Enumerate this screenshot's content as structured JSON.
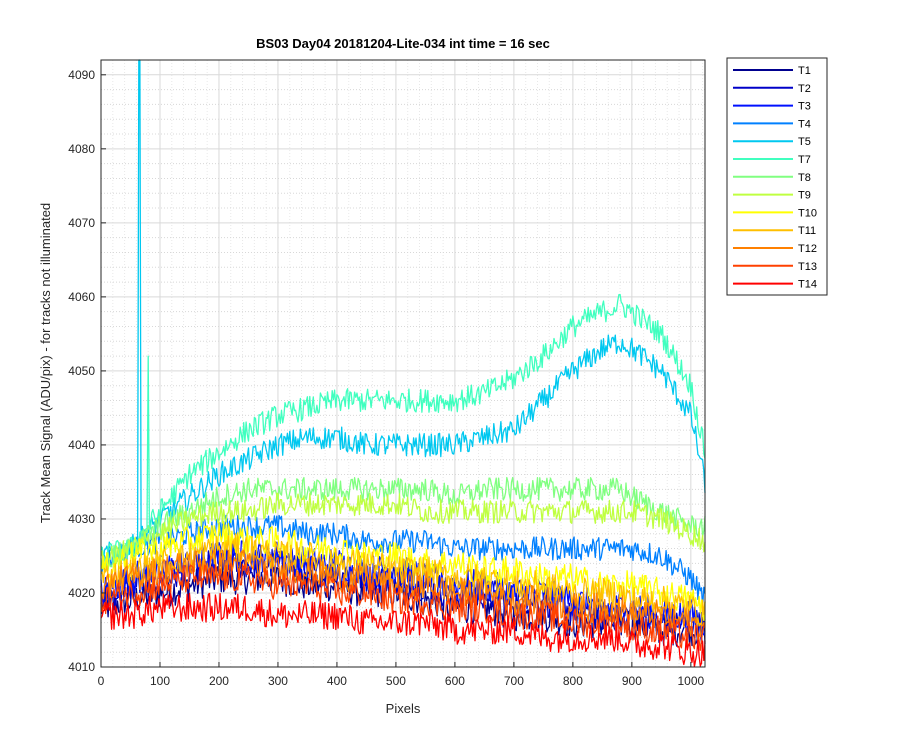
{
  "chart_data": {
    "type": "line",
    "title": "BS03 Day04 20181204-Lite-034 int time = 16 sec",
    "xlabel": "Pixels",
    "ylabel": "Track Mean Signal (ADU/pix) - for tracks not illuminated",
    "xlim": [
      0,
      1024
    ],
    "ylim": [
      4010,
      4092
    ],
    "xticks": [
      0,
      100,
      200,
      300,
      400,
      500,
      600,
      700,
      800,
      900,
      1000
    ],
    "yticks": [
      4010,
      4020,
      4030,
      4040,
      4050,
      4060,
      4070,
      4080,
      4090
    ],
    "grid": "major and minor",
    "legend_position": "outside-top-right",
    "x": [
      0,
      50,
      100,
      150,
      200,
      250,
      300,
      350,
      400,
      450,
      500,
      550,
      600,
      650,
      700,
      750,
      800,
      850,
      880,
      900,
      950,
      1000,
      1024
    ],
    "series": [
      {
        "name": "T1",
        "color": "#00008f",
        "noise": 2.2,
        "values": [
          4018,
          4019,
          4020,
          4021,
          4022,
          4022,
          4022,
          4021,
          4021,
          4020,
          4020,
          4019,
          4018,
          4018,
          4017,
          4017,
          4016,
          4016,
          4016,
          4016,
          4015,
          4015,
          4015
        ]
      },
      {
        "name": "T2",
        "color": "#0000c8",
        "noise": 2.2,
        "values": [
          4019,
          4021,
          4022,
          4023,
          4024,
          4024,
          4024,
          4023,
          4023,
          4022,
          4022,
          4021,
          4020,
          4020,
          4019,
          4019,
          4018,
          4017,
          4017,
          4017,
          4016,
          4016,
          4015
        ]
      },
      {
        "name": "T3",
        "color": "#0010ff",
        "noise": 2.2,
        "values": [
          4020,
          4022,
          4023,
          4024,
          4025,
          4025,
          4025,
          4024,
          4024,
          4023,
          4023,
          4022,
          4021,
          4021,
          4020,
          4020,
          4019,
          4018,
          4018,
          4018,
          4017,
          4017,
          4016
        ]
      },
      {
        "name": "T4",
        "color": "#0080ff",
        "noise": 1.6,
        "values": [
          4024,
          4026,
          4027,
          4028,
          4029,
          4029,
          4029,
          4028,
          4028,
          4027,
          4027,
          4027,
          4026,
          4026,
          4026,
          4026,
          4026,
          4026,
          4026,
          4026,
          4025,
          4022,
          4019
        ]
      },
      {
        "name": "T5",
        "color": "#00c8f0",
        "noise": 1.6,
        "values": [
          4025,
          4026,
          4030,
          4033,
          4036,
          4038,
          4040,
          4041,
          4041,
          4040,
          4040,
          4040,
          4040,
          4041,
          4042,
          4046,
          4050,
          4053,
          4054,
          4053,
          4050,
          4044,
          4035
        ]
      },
      {
        "name": "T7",
        "color": "#40ffbf",
        "noise": 1.6,
        "values": [
          4025,
          4026,
          4031,
          4036,
          4039,
          4042,
          4044,
          4045,
          4046,
          4046,
          4046,
          4046,
          4046,
          4047,
          4049,
          4052,
          4056,
          4058,
          4059,
          4058,
          4055,
          4048,
          4039
        ]
      },
      {
        "name": "T8",
        "color": "#80ff80",
        "noise": 1.6,
        "values": [
          4024,
          4026,
          4029,
          4031,
          4033,
          4034,
          4034,
          4034,
          4034,
          4034,
          4034,
          4034,
          4033,
          4034,
          4034,
          4034,
          4034,
          4034,
          4034,
          4033,
          4031,
          4029,
          4029
        ]
      },
      {
        "name": "T9",
        "color": "#bfff40",
        "noise": 1.6,
        "values": [
          4024,
          4026,
          4028,
          4030,
          4031,
          4031,
          4032,
          4032,
          4032,
          4032,
          4032,
          4031,
          4031,
          4031,
          4031,
          4031,
          4031,
          4031,
          4031,
          4031,
          4030,
          4028,
          4027
        ]
      },
      {
        "name": "T10",
        "color": "#ffff00",
        "noise": 2.0,
        "values": [
          4023,
          4025,
          4026,
          4027,
          4028,
          4027,
          4027,
          4026,
          4026,
          4025,
          4025,
          4024,
          4024,
          4023,
          4023,
          4022,
          4022,
          4021,
          4021,
          4021,
          4020,
          4019,
          4018
        ]
      },
      {
        "name": "T11",
        "color": "#ffbf00",
        "noise": 2.0,
        "values": [
          4022,
          4023,
          4024,
          4025,
          4026,
          4026,
          4025,
          4025,
          4024,
          4024,
          4023,
          4023,
          4022,
          4022,
          4021,
          4021,
          4020,
          4020,
          4020,
          4019,
          4019,
          4018,
          4017
        ]
      },
      {
        "name": "T12",
        "color": "#ff8000",
        "noise": 2.0,
        "values": [
          4021,
          4022,
          4023,
          4024,
          4024,
          4024,
          4023,
          4023,
          4022,
          4022,
          4021,
          4021,
          4020,
          4020,
          4019,
          4019,
          4018,
          4018,
          4018,
          4017,
          4017,
          4016,
          4015
        ]
      },
      {
        "name": "T13",
        "color": "#ff4000",
        "noise": 2.0,
        "values": [
          4019,
          4020,
          4021,
          4022,
          4022,
          4022,
          4021,
          4021,
          4020,
          4020,
          4019,
          4019,
          4018,
          4018,
          4017,
          4017,
          4016,
          4016,
          4016,
          4015,
          4015,
          4014,
          4014
        ]
      },
      {
        "name": "T14",
        "color": "#ff0000",
        "noise": 2.0,
        "values": [
          4017,
          4017,
          4018,
          4018,
          4018,
          4018,
          4017,
          4017,
          4017,
          4016,
          4016,
          4016,
          4015,
          4015,
          4015,
          4014,
          4014,
          4014,
          4014,
          4013,
          4013,
          4012,
          4012
        ]
      }
    ],
    "spikes": [
      {
        "series": "T5",
        "x": 65,
        "y": 4092
      },
      {
        "series": "T7",
        "x": 80,
        "y": 4052
      }
    ]
  }
}
